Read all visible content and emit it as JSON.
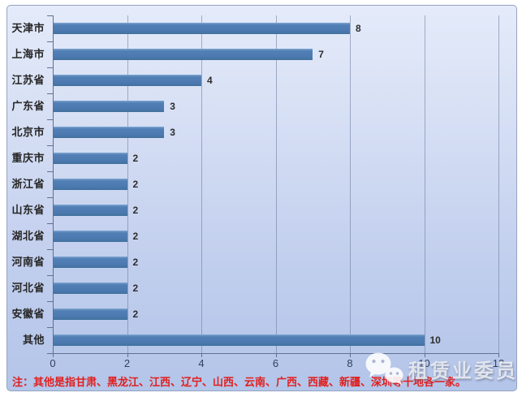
{
  "chart_data": {
    "type": "bar",
    "orientation": "horizontal",
    "title": "",
    "categories": [
      "天津市",
      "上海市",
      "江苏省",
      "广东省",
      "北京市",
      "重庆市",
      "浙江省",
      "山东省",
      "湖北省",
      "河南省",
      "河北省",
      "安徽省",
      "其他"
    ],
    "values": [
      8,
      7,
      4,
      3,
      3,
      2,
      2,
      2,
      2,
      2,
      2,
      2,
      10
    ],
    "value_labels": [
      "8",
      "7",
      "4",
      "3",
      "3",
      "2",
      "2",
      "2",
      "2",
      "2",
      "2",
      "2",
      "10"
    ],
    "xlim": [
      0,
      12
    ],
    "x_ticks": [
      0,
      2,
      4,
      6,
      8,
      10,
      12
    ],
    "grid": true,
    "legend": false,
    "value_labels_shown": true
  },
  "colors": {
    "bar": "#4d7ab0",
    "background_top": "#e4ebfa",
    "background_bottom": "#b3c5e9",
    "gridline": "#687899",
    "axis": "#5f7090",
    "category_text": "#262626",
    "axis_text": "#31405a",
    "note_red": "#e01f1f"
  },
  "note": {
    "text": "注：其他是指甘肃、黑龙江、江西、辽宁、山西、云南、广西、西藏、新疆、深圳等十地各一家。"
  },
  "watermark": {
    "icon": "wechat-icon",
    "text": "租赁业委员会"
  }
}
